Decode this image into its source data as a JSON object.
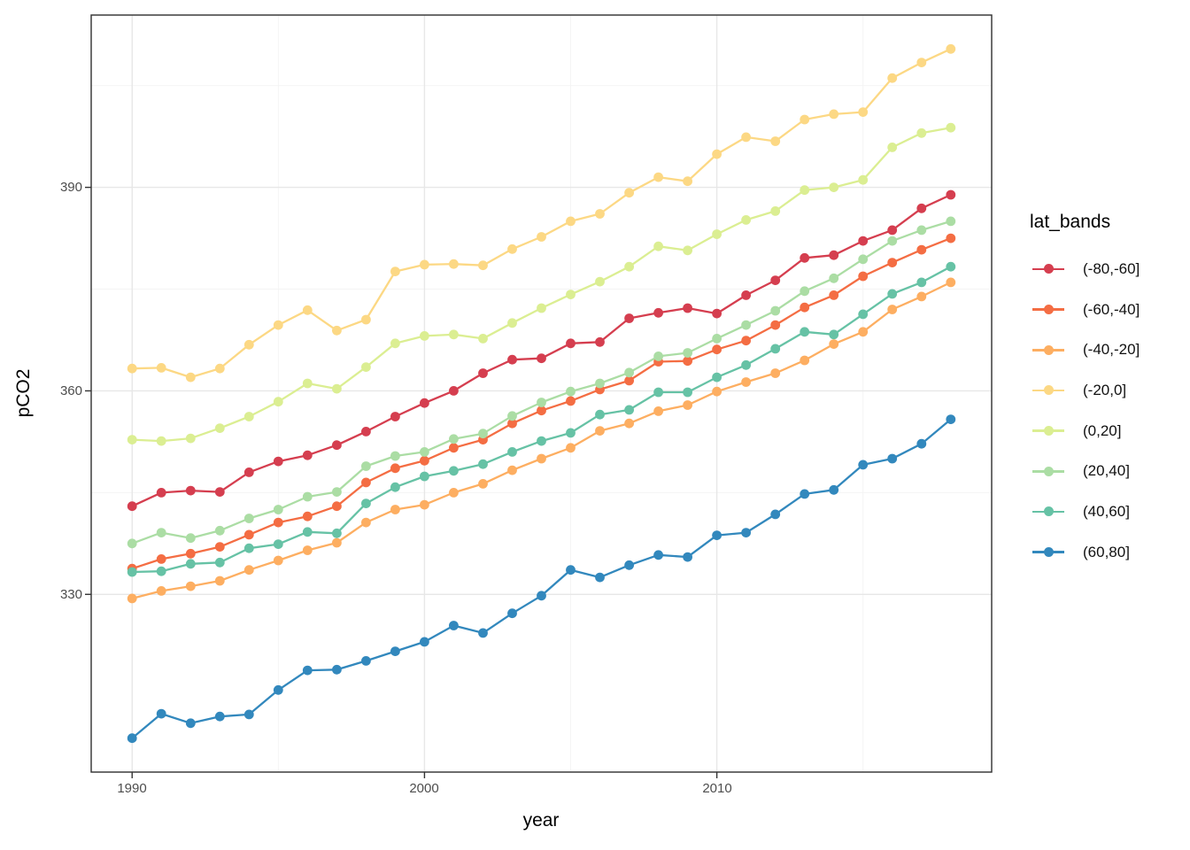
{
  "chart_data": {
    "type": "line",
    "title": "",
    "xlabel": "year",
    "ylabel": "pCO2",
    "legend_title": "lat_bands",
    "legend_position": "right",
    "grid": true,
    "panel_border_color": "#2f2f2f",
    "grid_major_color": "#e7e7e7",
    "grid_minor_color": "#f3f3f3",
    "tick_label_color": "#4d4d4d",
    "xlim": [
      1988.6,
      2019.4
    ],
    "ylim": [
      303.8,
      415.4
    ],
    "x_ticks_major": [
      1990,
      2000,
      2010
    ],
    "x_ticks_minor": [
      1995,
      2005,
      2015
    ],
    "y_ticks_major": [
      330,
      360,
      390
    ],
    "y_ticks_minor": [
      345,
      375,
      405
    ],
    "x_tick_labels": [
      "1990",
      "2000",
      "2010"
    ],
    "y_tick_labels": [
      "330",
      "360",
      "390"
    ],
    "x": [
      1990,
      1991,
      1992,
      1993,
      1994,
      1995,
      1996,
      1997,
      1998,
      1999,
      2000,
      2001,
      2002,
      2003,
      2004,
      2005,
      2006,
      2007,
      2008,
      2009,
      2010,
      2011,
      2012,
      2013,
      2014,
      2015,
      2016,
      2017,
      2018
    ],
    "series": [
      {
        "name": "(-80,-60]",
        "color": "#d53e4f",
        "values": [
          343.0,
          345.0,
          345.3,
          345.1,
          348.0,
          349.6,
          350.5,
          352.0,
          354.0,
          356.2,
          358.2,
          360.0,
          362.6,
          364.6,
          364.8,
          367.0,
          367.2,
          370.7,
          371.5,
          372.2,
          371.4,
          374.1,
          376.3,
          379.6,
          380.0,
          382.1,
          383.7,
          386.9,
          388.9
        ]
      },
      {
        "name": "(-60,-40]",
        "color": "#f46d43",
        "values": [
          333.8,
          335.2,
          336.0,
          337.0,
          338.8,
          340.6,
          341.5,
          343.0,
          346.5,
          348.6,
          349.7,
          351.6,
          352.8,
          355.2,
          357.1,
          358.5,
          360.2,
          361.5,
          364.3,
          364.4,
          366.1,
          367.4,
          369.7,
          372.3,
          374.1,
          376.9,
          378.9,
          380.8,
          382.5
        ]
      },
      {
        "name": "(-40,-20]",
        "color": "#fdae61",
        "values": [
          329.4,
          330.5,
          331.2,
          332.0,
          333.6,
          335.0,
          336.5,
          337.6,
          340.6,
          342.5,
          343.2,
          345.0,
          346.3,
          348.3,
          350.0,
          351.6,
          354.1,
          355.2,
          357.0,
          357.9,
          359.9,
          361.3,
          362.6,
          364.5,
          366.9,
          368.7,
          372.0,
          373.9,
          376.0
        ]
      },
      {
        "name": "(-20,0]",
        "color": "#fcd884",
        "values": [
          363.3,
          363.4,
          362.0,
          363.3,
          366.8,
          369.7,
          371.9,
          368.9,
          370.5,
          377.6,
          378.6,
          378.7,
          378.5,
          380.9,
          382.7,
          385.0,
          386.1,
          389.2,
          391.5,
          390.9,
          394.9,
          397.4,
          396.8,
          400.0,
          400.8,
          401.1,
          406.1,
          408.4,
          410.4
        ]
      },
      {
        "name": "(0,20]",
        "color": "#dbee92",
        "values": [
          352.8,
          352.6,
          353.0,
          354.5,
          356.2,
          358.4,
          361.1,
          360.3,
          363.5,
          367.0,
          368.1,
          368.3,
          367.7,
          370.0,
          372.2,
          374.2,
          376.1,
          378.3,
          381.3,
          380.7,
          383.1,
          385.2,
          386.5,
          389.6,
          390.0,
          391.1,
          395.9,
          398.0,
          398.8
        ]
      },
      {
        "name": "(20,40]",
        "color": "#abdda4",
        "values": [
          337.5,
          339.1,
          338.3,
          339.4,
          341.2,
          342.5,
          344.4,
          345.1,
          348.9,
          350.4,
          351.0,
          352.9,
          353.7,
          356.3,
          358.3,
          359.9,
          361.1,
          362.7,
          365.1,
          365.6,
          367.7,
          369.7,
          371.8,
          374.7,
          376.6,
          379.4,
          382.1,
          383.7,
          385.0
        ]
      },
      {
        "name": "(40,60]",
        "color": "#66c2a5",
        "values": [
          333.3,
          333.4,
          334.5,
          334.7,
          336.8,
          337.4,
          339.2,
          339.0,
          343.4,
          345.8,
          347.4,
          348.2,
          349.2,
          351.0,
          352.6,
          353.8,
          356.5,
          357.2,
          359.8,
          359.8,
          362.0,
          363.8,
          366.2,
          368.7,
          368.3,
          371.3,
          374.3,
          376.0,
          378.3
        ]
      },
      {
        "name": "(60,80]",
        "color": "#3288bd",
        "values": [
          308.8,
          312.4,
          311.0,
          312.0,
          312.3,
          315.9,
          318.8,
          318.9,
          320.2,
          321.6,
          323.0,
          325.4,
          324.3,
          327.2,
          329.8,
          333.6,
          332.5,
          334.3,
          335.8,
          335.5,
          338.7,
          339.1,
          341.8,
          344.8,
          345.4,
          349.1,
          350.0,
          352.2,
          355.8
        ]
      }
    ]
  }
}
